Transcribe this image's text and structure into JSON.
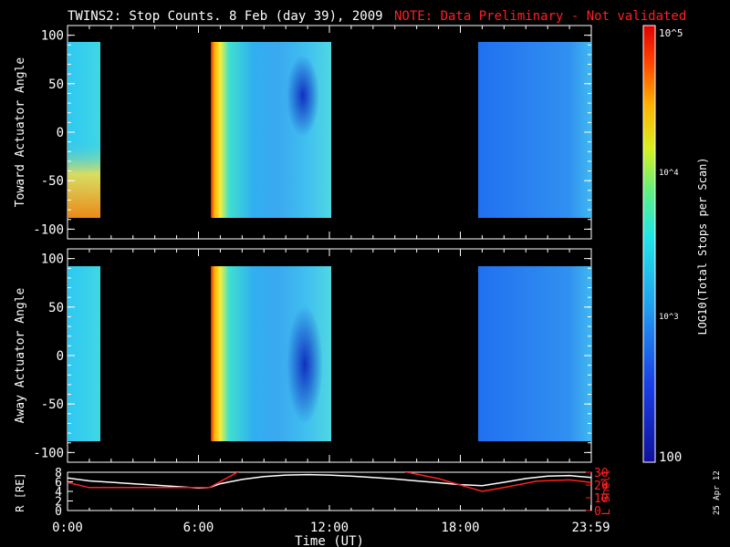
{
  "title": {
    "main": "TWINS2: Stop Counts.  8 Feb (day  39), 2009",
    "note": "NOTE: Data Preliminary - Not validated"
  },
  "date_stamp": "25 Apr 12",
  "colorbar": {
    "label": "LOG10(Total Stops per Scan)",
    "ticks": [
      "10^5",
      "10^4",
      "10^3",
      "100"
    ],
    "range": [
      100,
      100000
    ],
    "scale": "log"
  },
  "chart_data": [
    {
      "type": "heatmap",
      "ylabel": "Toward Actuator Angle",
      "ylim": [
        -110,
        110
      ],
      "yticks": [
        "100",
        "50",
        "0",
        "-50",
        "-100"
      ],
      "xlim": [
        0,
        24
      ],
      "data_intervals_hours": [
        [
          0.0,
          1.1
        ],
        [
          6.5,
          12.0
        ],
        [
          19.3,
          24.0
        ]
      ]
    },
    {
      "type": "heatmap",
      "ylabel": "Away Actuator Angle",
      "ylim": [
        -110,
        110
      ],
      "yticks": [
        "100",
        "50",
        "0",
        "-50",
        "-100"
      ],
      "xlim": [
        0,
        24
      ],
      "data_intervals_hours": [
        [
          0.0,
          1.1
        ],
        [
          6.5,
          12.0
        ],
        [
          19.3,
          24.0
        ]
      ]
    },
    {
      "type": "line",
      "ylabel": "R [RE]",
      "y2label": "L Shell",
      "xlabel": "Time (UT)",
      "xticks": [
        "0:00",
        "6:00",
        "12:00",
        "18:00",
        "23:59"
      ],
      "ylim": [
        0,
        8
      ],
      "y2lim": [
        0,
        30
      ],
      "yticks": [
        "8",
        "6",
        "4",
        "2",
        "0"
      ],
      "y2ticks": [
        "30",
        "20",
        "10",
        "0"
      ],
      "series": [
        {
          "name": "R",
          "color": "#ffffff",
          "x": [
            0,
            1,
            2,
            3,
            4,
            5,
            6,
            6.5,
            7,
            8,
            9,
            10,
            11,
            12,
            13,
            14,
            15,
            16,
            17,
            18,
            19,
            20,
            21,
            22,
            23,
            24
          ],
          "y": [
            6.8,
            6.2,
            5.9,
            5.6,
            5.3,
            5.0,
            4.7,
            4.8,
            5.6,
            6.5,
            7.1,
            7.4,
            7.5,
            7.4,
            7.2,
            6.9,
            6.6,
            6.2,
            5.8,
            5.4,
            5.2,
            5.9,
            6.7,
            7.2,
            7.3,
            6.9
          ]
        },
        {
          "name": "L Shell",
          "color": "#ff2020",
          "x": [
            0,
            1,
            6.5,
            8,
            15,
            17,
            19,
            20,
            21.5,
            23,
            24
          ],
          "y": [
            22,
            18,
            18,
            32,
            32,
            25,
            15,
            18,
            23,
            24,
            22
          ]
        }
      ]
    }
  ]
}
